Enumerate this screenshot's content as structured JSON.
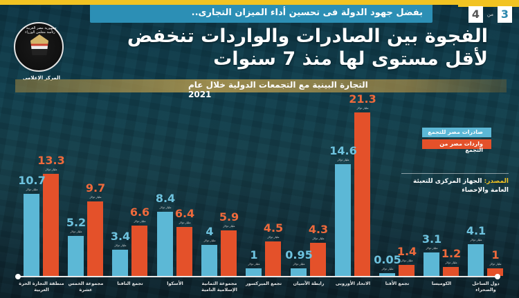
{
  "header": {
    "subtitle": "بفضل جهود الدولة فى تحسين أداء الميزان التجارى..",
    "headline_line1": "الفجوة بين الصادرات والواردات تنخفض",
    "headline_line2": "لأقل مستوى لها منذ 7 سنوات",
    "pager": {
      "current": "3",
      "of": "من",
      "total": "4"
    },
    "logo": {
      "ring_text": "جمهورية مصر العربية - رئاسة مجلس الوزراء",
      "banner": "المركز الإعلامى"
    }
  },
  "chart_title": "التجارة البينية مع التجمعات الدولية خلال عام 2021",
  "legend": {
    "exports": "صادرات مصر للتجمع",
    "imports": "واردات مصر من التجمع"
  },
  "source": {
    "label": "المصدر:",
    "text": "الجهاز المركزى للتعبئة العامة والإحصاء"
  },
  "unit_label": "مليار دولار",
  "colors": {
    "exports": "#5cb8d6",
    "imports": "#e4512a",
    "accent": "#f2c322",
    "subtitle_bar": "#2c8fb5"
  },
  "chart_data": {
    "type": "bar",
    "title": "التجارة البينية مع التجمعات الدولية خلال عام 2021",
    "xlabel": "",
    "ylabel": "مليار دولار",
    "categories": [
      "منطقة التجارة الحرة العربية",
      "مجموعة الخمس عشرة",
      "تجمع النافتا",
      "الأسكوا",
      "مجموعة الثمانية الإسلامية النامية",
      "تجمع الميركسور",
      "رابطة الآسيان",
      "الاتحاد الأوروبى",
      "تجمع الأفتا",
      "الكوميسا",
      "دول الساحل والصحراء"
    ],
    "series": [
      {
        "name": "صادرات مصر للتجمع",
        "values": [
          10.7,
          5.2,
          3.4,
          8.4,
          4,
          1,
          0.95,
          14.6,
          0.05,
          3.1,
          4.1
        ]
      },
      {
        "name": "واردات مصر من التجمع",
        "values": [
          13.3,
          9.7,
          6.6,
          6.4,
          5.9,
          4.5,
          4.3,
          21.3,
          1.4,
          1.2,
          1
        ]
      }
    ],
    "value_labels": {
      "exports": [
        "10.7",
        "5.2",
        "3.4",
        "8.4",
        "4",
        "1",
        "0.95",
        "14.6",
        "0.05",
        "3.1",
        "4.1"
      ],
      "imports": [
        "13.3",
        "9.7",
        "6.6",
        "6.4",
        "5.9",
        "4.5",
        "4.3",
        "21.3",
        "1.4",
        "1.2",
        "1"
      ]
    },
    "legend_position": "right",
    "grid": false,
    "ylim": [
      0,
      22
    ]
  }
}
